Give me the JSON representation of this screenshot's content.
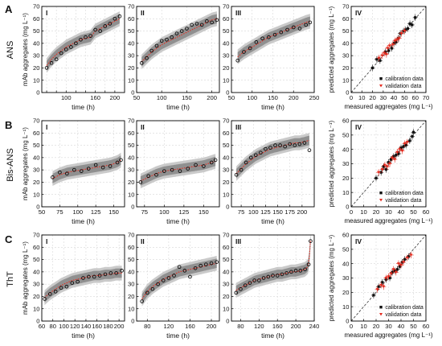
{
  "figure": {
    "rows": [
      {
        "letter": "A",
        "name": "ANS"
      },
      {
        "letter": "B",
        "name": "Bis-ANS"
      },
      {
        "letter": "C",
        "name": "ThT"
      }
    ],
    "panel_labels": [
      "I",
      "II",
      "III",
      "IV"
    ],
    "time_xlabel": "time (h)",
    "time_ylabel": "mAb aggregates (mg L⁻¹)",
    "par_xlabel": "measured aggregates (mg L⁻¹)",
    "par_ylabel": "predicted aggregates (mg L⁻¹)",
    "legend": {
      "calibration": "calibration data",
      "validation": "validation data"
    },
    "colors": {
      "band": "#8c8c8c",
      "band_light": "#c4c4c4",
      "pred": "#e52b1f",
      "meas": "#000000",
      "grid": "#d8d8d8"
    }
  },
  "chart_data": [
    {
      "type": "line",
      "row": "A",
      "panel": "I",
      "xlim": [
        50,
        220
      ],
      "ylim": [
        0,
        70
      ],
      "xticks": [
        60,
        80,
        100,
        120,
        140,
        160,
        180,
        200
      ],
      "xticklabels": [
        "",
        "",
        "100",
        "",
        "",
        "160",
        "",
        "200"
      ],
      "yticks": [
        0,
        10,
        20,
        30,
        40,
        50,
        60,
        70
      ],
      "x": [
        60,
        70,
        80,
        90,
        100,
        110,
        120,
        130,
        140,
        150,
        160,
        170,
        180,
        190,
        200,
        210
      ],
      "pred": [
        22,
        27,
        31,
        34,
        37,
        39,
        41,
        43,
        44,
        45,
        50,
        52,
        54,
        56,
        58,
        60
      ],
      "meas": [
        20,
        24,
        27,
        32,
        35,
        37,
        40,
        43,
        45,
        46,
        51,
        50,
        54,
        56,
        60,
        62
      ]
    },
    {
      "type": "line",
      "row": "A",
      "panel": "II",
      "xlim": [
        50,
        215
      ],
      "ylim": [
        0,
        70
      ],
      "xticks": [
        50,
        100,
        150,
        200
      ],
      "xticklabels": [
        "50",
        "100",
        "150",
        "200"
      ],
      "yticks": [
        0,
        10,
        20,
        30,
        40,
        50,
        60,
        70
      ],
      "x": [
        60,
        70,
        80,
        90,
        100,
        110,
        120,
        130,
        140,
        150,
        160,
        170,
        180,
        190,
        200,
        210
      ],
      "pred": [
        25,
        29,
        33,
        36,
        39,
        41,
        43,
        45,
        47,
        49,
        51,
        53,
        55,
        57,
        59,
        60
      ],
      "meas": [
        24,
        28,
        34,
        38,
        42,
        43,
        45,
        48,
        50,
        52,
        55,
        56,
        55,
        58,
        57,
        59
      ]
    },
    {
      "type": "line",
      "row": "A",
      "panel": "III",
      "xlim": [
        50,
        250
      ],
      "ylim": [
        0,
        70
      ],
      "xticks": [
        50,
        100,
        150,
        200,
        250
      ],
      "xticklabels": [
        "50",
        "100",
        "150",
        "200",
        "250"
      ],
      "yticks": [
        0,
        10,
        20,
        30,
        40,
        50,
        60,
        70
      ],
      "x": [
        65,
        80,
        95,
        110,
        125,
        140,
        155,
        170,
        185,
        200,
        215,
        230,
        240
      ],
      "pred": [
        29,
        33,
        36,
        39,
        42,
        45,
        47,
        49,
        51,
        53,
        55,
        57,
        58
      ],
      "meas": [
        26,
        33,
        36,
        41,
        44,
        45,
        47,
        49,
        51,
        53,
        52,
        55,
        57
      ]
    },
    {
      "type": "scatter",
      "row": "A",
      "panel": "IV",
      "xlim": [
        0,
        70
      ],
      "ylim": [
        0,
        70
      ],
      "xticks": [
        0,
        10,
        20,
        30,
        40,
        50,
        60,
        70
      ],
      "yticks": [
        0,
        10,
        20,
        30,
        40,
        50,
        60,
        70
      ],
      "calibration": [
        [
          20,
          20
        ],
        [
          24,
          27
        ],
        [
          27,
          26
        ],
        [
          32,
          33
        ],
        [
          35,
          34
        ],
        [
          38,
          36
        ],
        [
          40,
          40
        ],
        [
          42,
          41
        ],
        [
          44,
          44
        ],
        [
          46,
          48
        ],
        [
          49,
          50
        ],
        [
          51,
          51
        ],
        [
          53,
          52
        ],
        [
          55,
          56
        ],
        [
          57,
          55
        ],
        [
          60,
          61
        ]
      ],
      "validation": [
        [
          26,
          28
        ],
        [
          29,
          30
        ],
        [
          31,
          32
        ],
        [
          33,
          31
        ],
        [
          34,
          36
        ],
        [
          36,
          38
        ],
        [
          39,
          39
        ],
        [
          41,
          42
        ],
        [
          43,
          43
        ],
        [
          45,
          44
        ],
        [
          47,
          48
        ],
        [
          50,
          50
        ]
      ]
    },
    {
      "type": "line",
      "row": "B",
      "panel": "I",
      "xlim": [
        50,
        165
      ],
      "ylim": [
        0,
        70
      ],
      "xticks": [
        50,
        75,
        100,
        125,
        150
      ],
      "xticklabels": [
        "50",
        "75",
        "100",
        "125",
        "150"
      ],
      "yticks": [
        0,
        10,
        20,
        30,
        40,
        50,
        60,
        70
      ],
      "x": [
        65,
        75,
        85,
        95,
        105,
        115,
        125,
        135,
        145,
        155,
        160
      ],
      "pred": [
        23,
        26,
        28,
        29,
        30,
        31,
        32,
        33,
        34,
        36,
        38
      ],
      "meas": [
        24,
        28,
        27,
        30,
        29,
        31,
        34,
        32,
        33,
        36,
        38
      ]
    },
    {
      "type": "line",
      "row": "B",
      "panel": "II",
      "xlim": [
        65,
        170
      ],
      "ylim": [
        0,
        70
      ],
      "xticks": [
        75,
        100,
        125,
        150
      ],
      "xticklabels": [
        "75",
        "100",
        "125",
        "150"
      ],
      "yticks": [
        0,
        10,
        20,
        30,
        40,
        50,
        60,
        70
      ],
      "x": [
        70,
        80,
        90,
        100,
        110,
        120,
        130,
        140,
        150,
        160,
        165
      ],
      "pred": [
        21,
        24,
        27,
        29,
        30,
        31,
        32,
        33,
        34,
        36,
        37
      ],
      "meas": [
        20,
        25,
        26,
        29,
        30,
        29,
        31,
        34,
        33,
        36,
        38
      ]
    },
    {
      "type": "line",
      "row": "B",
      "panel": "III",
      "xlim": [
        55,
        225
      ],
      "ylim": [
        0,
        70
      ],
      "xticks": [
        75,
        100,
        125,
        150,
        175,
        200
      ],
      "xticklabels": [
        "75",
        "100",
        "125",
        "150",
        "175",
        "200"
      ],
      "yticks": [
        0,
        10,
        20,
        30,
        40,
        50,
        60,
        70
      ],
      "x": [
        65,
        75,
        85,
        95,
        105,
        115,
        125,
        135,
        145,
        155,
        165,
        175,
        185,
        195,
        205,
        215
      ],
      "pred": [
        27,
        31,
        35,
        38,
        41,
        43,
        45,
        47,
        48,
        49,
        50,
        51,
        52,
        52,
        53,
        54
      ],
      "meas": [
        26,
        30,
        36,
        40,
        42,
        44,
        47,
        48,
        50,
        50,
        49,
        51,
        50,
        51,
        52,
        46
      ]
    },
    {
      "type": "scatter",
      "row": "B",
      "panel": "IV",
      "xlim": [
        0,
        60
      ],
      "ylim": [
        0,
        60
      ],
      "xticks": [
        0,
        10,
        20,
        30,
        40,
        50,
        60
      ],
      "yticks": [
        0,
        10,
        20,
        30,
        40,
        50,
        60
      ],
      "calibration": [
        [
          20,
          20
        ],
        [
          24,
          24
        ],
        [
          26,
          28
        ],
        [
          28,
          26
        ],
        [
          30,
          31
        ],
        [
          32,
          33
        ],
        [
          34,
          35
        ],
        [
          36,
          36
        ],
        [
          38,
          37
        ],
        [
          40,
          41
        ],
        [
          42,
          42
        ],
        [
          44,
          43
        ],
        [
          47,
          46
        ],
        [
          49,
          49
        ],
        [
          50,
          52
        ]
      ],
      "validation": [
        [
          22,
          24
        ],
        [
          25,
          26
        ],
        [
          27,
          29
        ],
        [
          29,
          28
        ],
        [
          31,
          30
        ],
        [
          33,
          34
        ],
        [
          35,
          33
        ],
        [
          37,
          38
        ],
        [
          39,
          40
        ],
        [
          41,
          39
        ],
        [
          43,
          44
        ],
        [
          45,
          45
        ]
      ]
    },
    {
      "type": "line",
      "row": "C",
      "panel": "I",
      "xlim": [
        60,
        210
      ],
      "ylim": [
        0,
        70
      ],
      "xticks": [
        60,
        80,
        100,
        120,
        140,
        160,
        180,
        200
      ],
      "xticklabels": [
        "60",
        "80",
        "100",
        "120",
        "140",
        "160",
        "180",
        "200"
      ],
      "yticks": [
        0,
        10,
        20,
        30,
        40,
        50,
        60,
        70
      ],
      "x": [
        65,
        75,
        85,
        95,
        105,
        115,
        125,
        135,
        145,
        155,
        165,
        175,
        185,
        195,
        205
      ],
      "pred": [
        19,
        23,
        26,
        29,
        31,
        33,
        34,
        35,
        36,
        37,
        37,
        38,
        38,
        39,
        39
      ],
      "meas": [
        18,
        22,
        24,
        27,
        28,
        31,
        32,
        35,
        36,
        36,
        37,
        38,
        39,
        39,
        41
      ]
    },
    {
      "type": "line",
      "row": "C",
      "panel": "II",
      "xlim": [
        60,
        215
      ],
      "ylim": [
        0,
        70
      ],
      "xticks": [
        80,
        120,
        160,
        200
      ],
      "xticklabels": [
        "80",
        "120",
        "160",
        "200"
      ],
      "yticks": [
        0,
        10,
        20,
        30,
        40,
        50,
        60,
        70
      ],
      "x": [
        70,
        80,
        90,
        100,
        110,
        120,
        130,
        140,
        150,
        160,
        170,
        180,
        190,
        200,
        210
      ],
      "pred": [
        18,
        24,
        28,
        31,
        34,
        36,
        38,
        40,
        41,
        42,
        43,
        44,
        45,
        46,
        47
      ],
      "meas": [
        16,
        23,
        26,
        30,
        33,
        35,
        37,
        44,
        41,
        36,
        43,
        45,
        46,
        47,
        48
      ]
    },
    {
      "type": "line",
      "row": "C",
      "panel": "III",
      "xlim": [
        60,
        240
      ],
      "ylim": [
        0,
        70
      ],
      "xticks": [
        80,
        120,
        160,
        200,
        240
      ],
      "xticklabels": [
        "80",
        "120",
        "160",
        "200",
        "240"
      ],
      "yticks": [
        0,
        10,
        20,
        30,
        40,
        50,
        60,
        70
      ],
      "x": [
        70,
        80,
        90,
        100,
        110,
        120,
        130,
        140,
        150,
        160,
        170,
        180,
        190,
        200,
        210,
        220,
        228,
        232
      ],
      "pred": [
        25,
        27,
        29,
        31,
        33,
        34,
        35,
        36,
        37,
        38,
        38,
        39,
        40,
        40,
        41,
        42,
        45,
        66
      ],
      "meas": [
        23,
        26,
        29,
        31,
        33,
        33,
        35,
        36,
        37,
        37,
        38,
        39,
        40,
        41,
        41,
        42,
        46,
        65
      ]
    },
    {
      "type": "scatter",
      "row": "C",
      "panel": "IV",
      "xlim": [
        0,
        60
      ],
      "ylim": [
        0,
        60
      ],
      "xticks": [
        0,
        10,
        20,
        30,
        40,
        50,
        60
      ],
      "yticks": [
        0,
        10,
        20,
        30,
        40,
        50,
        60
      ],
      "calibration": [
        [
          18,
          18
        ],
        [
          22,
          24
        ],
        [
          25,
          27
        ],
        [
          28,
          29
        ],
        [
          31,
          30
        ],
        [
          33,
          34
        ],
        [
          35,
          35
        ],
        [
          37,
          36
        ],
        [
          39,
          38
        ],
        [
          41,
          41
        ],
        [
          43,
          43
        ],
        [
          46,
          45
        ]
      ],
      "validation": [
        [
          21,
          22
        ],
        [
          24,
          25
        ],
        [
          26,
          24
        ],
        [
          28,
          30
        ],
        [
          30,
          31
        ],
        [
          32,
          33
        ],
        [
          34,
          36
        ],
        [
          36,
          34
        ],
        [
          38,
          40
        ],
        [
          40,
          39
        ],
        [
          42,
          41
        ],
        [
          45,
          44
        ],
        [
          48,
          46
        ]
      ]
    }
  ]
}
